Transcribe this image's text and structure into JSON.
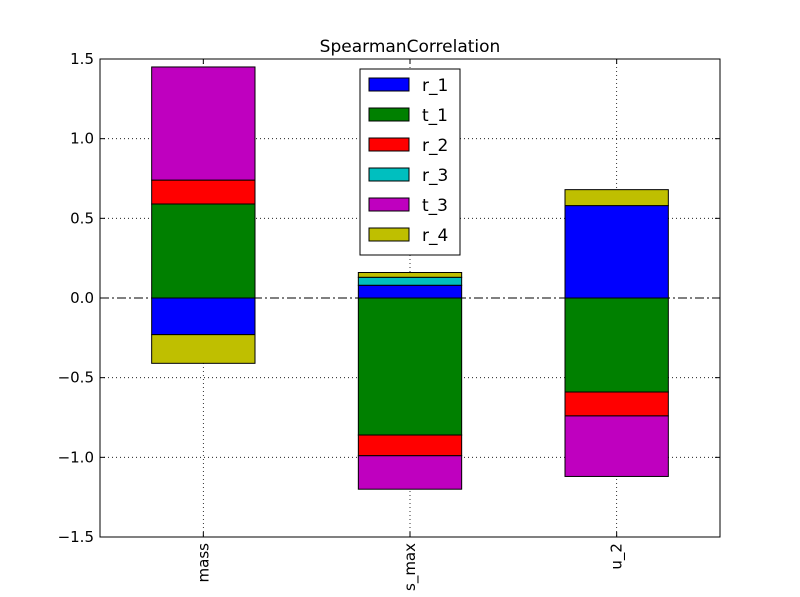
{
  "chart_data": {
    "type": "bar",
    "stacked": true,
    "title": "SpearmanCorrelation",
    "xlabel": "",
    "ylabel": "",
    "categories": [
      "mass",
      "s_max",
      "u_2"
    ],
    "ylim": [
      -1.5,
      1.5
    ],
    "yticks": [
      -1.5,
      -1.0,
      -0.5,
      0.0,
      0.5,
      1.0,
      1.5
    ],
    "ytick_labels": [
      "−1.5",
      "−1.0",
      "−0.5",
      "0.0",
      "0.5",
      "1.0",
      "1.5"
    ],
    "grid": true,
    "zero_line": "dash-dot",
    "legend_position": "upper-center",
    "series": [
      {
        "name": "r_1",
        "color": "#0000ff",
        "values": [
          -0.23,
          0.08,
          0.58
        ]
      },
      {
        "name": "t_1",
        "color": "#008000",
        "values": [
          0.59,
          -0.86,
          -0.59
        ]
      },
      {
        "name": "r_2",
        "color": "#ff0000",
        "values": [
          0.15,
          -0.13,
          -0.15
        ]
      },
      {
        "name": "r_3",
        "color": "#00bfbf",
        "values": [
          0.0,
          0.05,
          0.0
        ]
      },
      {
        "name": "t_3",
        "color": "#bf00bf",
        "values": [
          0.71,
          -0.21,
          -0.38
        ]
      },
      {
        "name": "r_4",
        "color": "#bfbf00",
        "values": [
          -0.18,
          0.03,
          0.1
        ]
      }
    ]
  }
}
